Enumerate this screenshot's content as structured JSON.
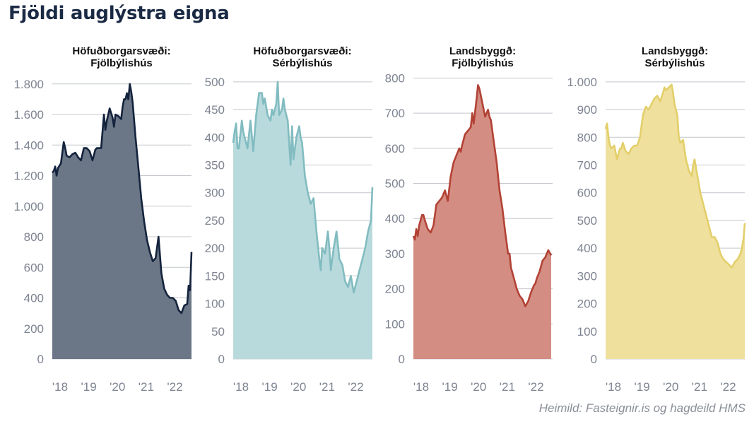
{
  "title": "Fjöldi auglýstra eigna",
  "source": "Heimild: Fasteignir.is og hagdeild HMS",
  "chart_data": [
    {
      "type": "area",
      "title_line1": "Höfuðborgarsvæði:",
      "title_line2": "Fjölbýlishús",
      "color_line": "#14233d",
      "color_fill": "#6b7686",
      "ylim": [
        0,
        1850
      ],
      "yticks": [
        0,
        200,
        400,
        600,
        800,
        1000,
        1200,
        1400,
        1600,
        1800
      ],
      "ytick_labels": [
        "0",
        "200",
        "400",
        "600",
        "800",
        "1.000",
        "1.200",
        "1.400",
        "1.600",
        "1.800"
      ],
      "xticks": [
        2018,
        2019,
        2020,
        2021,
        2022
      ],
      "xtick_labels": [
        "'18",
        "'19",
        "'20",
        "'21",
        "'22"
      ],
      "xlim": [
        2018,
        2022.85
      ],
      "x": [
        2018,
        2018.05,
        2018.1,
        2018.15,
        2018.2,
        2018.3,
        2018.4,
        2018.45,
        2018.5,
        2018.6,
        2018.7,
        2018.8,
        2018.9,
        2019,
        2019.1,
        2019.2,
        2019.3,
        2019.4,
        2019.5,
        2019.55,
        2019.6,
        2019.7,
        2019.8,
        2019.85,
        2019.9,
        2020,
        2020.1,
        2020.15,
        2020.2,
        2020.3,
        2020.4,
        2020.45,
        2020.5,
        2020.55,
        2020.6,
        2020.65,
        2020.7,
        2020.75,
        2020.8,
        2020.9,
        2021,
        2021.1,
        2021.2,
        2021.3,
        2021.4,
        2021.5,
        2021.6,
        2021.7,
        2021.8,
        2021.9,
        2022,
        2022.1,
        2022.2,
        2022.3,
        2022.4,
        2022.5,
        2022.6,
        2022.7,
        2022.75,
        2022.8,
        2022.85
      ],
      "y": [
        1220,
        1230,
        1260,
        1200,
        1250,
        1280,
        1420,
        1380,
        1330,
        1320,
        1340,
        1350,
        1320,
        1300,
        1380,
        1380,
        1360,
        1300,
        1370,
        1380,
        1380,
        1380,
        1600,
        1500,
        1560,
        1640,
        1580,
        1520,
        1600,
        1590,
        1570,
        1650,
        1700,
        1700,
        1740,
        1700,
        1800,
        1750,
        1680,
        1450,
        1250,
        1050,
        900,
        780,
        700,
        640,
        660,
        800,
        560,
        460,
        420,
        400,
        400,
        380,
        320,
        300,
        350,
        360,
        480,
        450,
        700
      ]
    },
    {
      "type": "area",
      "title_line1": "Höfuðborgarsvæði:",
      "title_line2": "Sérbýlishús",
      "color_line": "#82bcc0",
      "color_fill": "#b9dadd",
      "ylim": [
        0,
        510
      ],
      "yticks": [
        0,
        50,
        100,
        150,
        200,
        250,
        300,
        350,
        400,
        450,
        500
      ],
      "ytick_labels": [
        "0",
        "50",
        "100",
        "150",
        "200",
        "250",
        "300",
        "350",
        "400",
        "450",
        "500"
      ],
      "xticks": [
        2018,
        2019,
        2020,
        2021,
        2022
      ],
      "xtick_labels": [
        "'18",
        "'19",
        "'20",
        "'21",
        "'22"
      ],
      "xlim": [
        2018,
        2022.85
      ],
      "x": [
        2018,
        2018.05,
        2018.1,
        2018.15,
        2018.2,
        2018.3,
        2018.35,
        2018.4,
        2018.5,
        2018.6,
        2018.7,
        2018.8,
        2018.9,
        2019,
        2019.05,
        2019.1,
        2019.2,
        2019.3,
        2019.35,
        2019.4,
        2019.5,
        2019.55,
        2019.6,
        2019.7,
        2019.75,
        2019.8,
        2019.9,
        2020,
        2020.05,
        2020.1,
        2020.2,
        2020.3,
        2020.35,
        2020.4,
        2020.5,
        2020.6,
        2020.7,
        2020.8,
        2020.9,
        2021,
        2021.05,
        2021.1,
        2021.2,
        2021.3,
        2021.35,
        2021.4,
        2021.5,
        2021.6,
        2021.7,
        2021.8,
        2021.9,
        2022,
        2022.1,
        2022.2,
        2022.3,
        2022.4,
        2022.5,
        2022.6,
        2022.7,
        2022.8,
        2022.85
      ],
      "y": [
        390,
        410,
        425,
        380,
        380,
        430,
        410,
        400,
        380,
        430,
        375,
        440,
        480,
        480,
        460,
        470,
        440,
        430,
        450,
        440,
        460,
        500,
        440,
        450,
        470,
        450,
        430,
        350,
        420,
        360,
        400,
        420,
        400,
        390,
        330,
        300,
        280,
        290,
        230,
        180,
        160,
        200,
        190,
        230,
        200,
        160,
        200,
        230,
        180,
        170,
        140,
        130,
        150,
        120,
        140,
        160,
        180,
        200,
        230,
        250,
        310
      ]
    },
    {
      "type": "area",
      "title_line1": "Landsbyggð:",
      "title_line2": "Fjölbýlishús",
      "color_line": "#b24235",
      "color_fill": "#d48d82",
      "ylim": [
        0,
        805
      ],
      "yticks": [
        0,
        100,
        200,
        300,
        400,
        500,
        600,
        700,
        800
      ],
      "ytick_labels": [
        "0",
        "100",
        "200",
        "300",
        "400",
        "500",
        "600",
        "700",
        "800"
      ],
      "xticks": [
        2018,
        2019,
        2020,
        2021,
        2022
      ],
      "xtick_labels": [
        "'18",
        "'19",
        "'20",
        "'21",
        "'22"
      ],
      "xlim": [
        2018,
        2022.85
      ],
      "x": [
        2018,
        2018.05,
        2018.1,
        2018.15,
        2018.2,
        2018.3,
        2018.35,
        2018.4,
        2018.5,
        2018.6,
        2018.7,
        2018.8,
        2018.9,
        2019,
        2019.05,
        2019.1,
        2019.2,
        2019.3,
        2019.35,
        2019.4,
        2019.5,
        2019.6,
        2019.65,
        2019.7,
        2019.8,
        2019.9,
        2020,
        2020.05,
        2020.1,
        2020.2,
        2020.25,
        2020.3,
        2020.4,
        2020.5,
        2020.6,
        2020.65,
        2020.7,
        2020.75,
        2020.8,
        2020.9,
        2021,
        2021.1,
        2021.2,
        2021.3,
        2021.35,
        2021.4,
        2021.5,
        2021.6,
        2021.7,
        2021.8,
        2021.9,
        2022,
        2022.1,
        2022.2,
        2022.25,
        2022.3,
        2022.4,
        2022.5,
        2022.6,
        2022.7,
        2022.8
      ],
      "y": [
        350,
        340,
        370,
        350,
        380,
        410,
        410,
        395,
        370,
        360,
        380,
        440,
        450,
        460,
        470,
        480,
        450,
        520,
        540,
        560,
        580,
        600,
        590,
        610,
        640,
        650,
        660,
        700,
        670,
        740,
        780,
        770,
        730,
        690,
        710,
        690,
        680,
        650,
        620,
        560,
        480,
        430,
        360,
        300,
        300,
        260,
        230,
        200,
        180,
        170,
        150,
        165,
        190,
        210,
        215,
        230,
        250,
        280,
        290,
        310,
        295
      ]
    },
    {
      "type": "area",
      "title_line1": "Landsbyggð:",
      "title_line2": "Sérbýlishús",
      "color_line": "#e3cf6a",
      "color_fill": "#efe09e",
      "ylim": [
        0,
        1020
      ],
      "yticks": [
        0,
        100,
        200,
        300,
        400,
        500,
        600,
        700,
        800,
        900,
        1000
      ],
      "ytick_labels": [
        "0",
        "100",
        "200",
        "300",
        "400",
        "500",
        "600",
        "700",
        "800",
        "900",
        "1.000"
      ],
      "xticks": [
        2018,
        2019,
        2020,
        2021,
        2022
      ],
      "xtick_labels": [
        "'18",
        "'19",
        "'20",
        "'21",
        "'22"
      ],
      "xlim": [
        2018,
        2022.85
      ],
      "x": [
        2018,
        2018.05,
        2018.1,
        2018.15,
        2018.2,
        2018.3,
        2018.4,
        2018.5,
        2018.55,
        2018.6,
        2018.7,
        2018.8,
        2018.9,
        2019,
        2019.1,
        2019.2,
        2019.3,
        2019.4,
        2019.5,
        2019.6,
        2019.7,
        2019.8,
        2019.9,
        2020,
        2020.05,
        2020.1,
        2020.2,
        2020.3,
        2020.35,
        2020.4,
        2020.5,
        2020.55,
        2020.6,
        2020.7,
        2020.8,
        2020.9,
        2021,
        2021.05,
        2021.1,
        2021.2,
        2021.3,
        2021.35,
        2021.4,
        2021.5,
        2021.6,
        2021.7,
        2021.8,
        2021.9,
        2022,
        2022.1,
        2022.2,
        2022.3,
        2022.4,
        2022.5,
        2022.6,
        2022.7,
        2022.75,
        2022.8,
        2022.85
      ],
      "y": [
        830,
        850,
        800,
        770,
        760,
        770,
        720,
        760,
        760,
        780,
        750,
        740,
        760,
        770,
        770,
        800,
        880,
        910,
        900,
        920,
        940,
        950,
        930,
        960,
        980,
        970,
        980,
        990,
        960,
        920,
        880,
        800,
        780,
        790,
        720,
        680,
        660,
        700,
        720,
        660,
        600,
        580,
        560,
        520,
        480,
        440,
        440,
        420,
        380,
        360,
        350,
        340,
        330,
        350,
        360,
        380,
        400,
        430,
        490
      ]
    }
  ]
}
